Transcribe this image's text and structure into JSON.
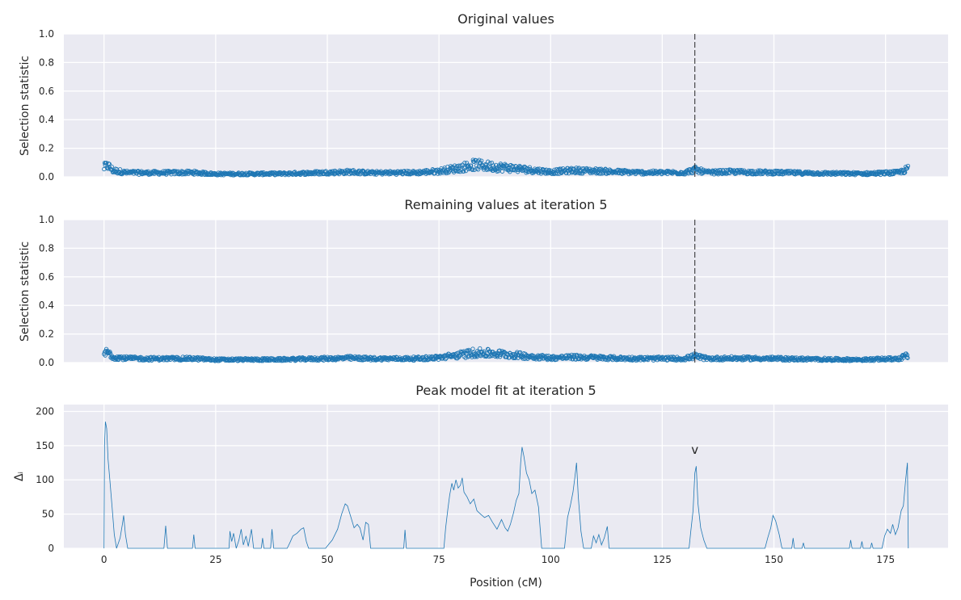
{
  "chart_data": [
    {
      "type": "scatter",
      "title": "Original values",
      "ylabel": "Selection statistic",
      "xlabel": "",
      "xlim": [
        -9,
        189
      ],
      "ylim": [
        0,
        1
      ],
      "yticks": [
        0.0,
        0.2,
        0.4,
        0.6,
        0.8,
        1.0
      ],
      "ytick_labels": [
        "0.0",
        "0.2",
        "0.4",
        "0.6",
        "0.8",
        "1.0"
      ],
      "xticks": [
        0,
        25,
        50,
        75,
        100,
        125,
        150,
        175
      ],
      "show_xtick_labels": false,
      "grid": true,
      "peak_position": 132.3,
      "series": [
        {
          "color": "#1f77b4",
          "marker": "open-circle",
          "x_range": [
            0,
            180
          ],
          "profile": [
            [
              0,
              0.065
            ],
            [
              0.8,
              0.08
            ],
            [
              2,
              0.045
            ],
            [
              5,
              0.03
            ],
            [
              10,
              0.028
            ],
            [
              20,
              0.03
            ],
            [
              25,
              0.02
            ],
            [
              40,
              0.022
            ],
            [
              50,
              0.03
            ],
            [
              55,
              0.035
            ],
            [
              60,
              0.028
            ],
            [
              70,
              0.03
            ],
            [
              75,
              0.04
            ],
            [
              80,
              0.065
            ],
            [
              83,
              0.085
            ],
            [
              86,
              0.075
            ],
            [
              90,
              0.065
            ],
            [
              95,
              0.05
            ],
            [
              100,
              0.035
            ],
            [
              105,
              0.045
            ],
            [
              110,
              0.042
            ],
            [
              115,
              0.035
            ],
            [
              120,
              0.03
            ],
            [
              130,
              0.03
            ],
            [
              132.3,
              0.05
            ],
            [
              135,
              0.03
            ],
            [
              140,
              0.035
            ],
            [
              150,
              0.03
            ],
            [
              160,
              0.025
            ],
            [
              170,
              0.022
            ],
            [
              178,
              0.03
            ],
            [
              180,
              0.055
            ]
          ]
        }
      ]
    },
    {
      "type": "scatter",
      "title": "Remaining values at iteration 5",
      "ylabel": "Selection statistic",
      "xlabel": "",
      "xlim": [
        -9,
        189
      ],
      "ylim": [
        0,
        1
      ],
      "yticks": [
        0.0,
        0.2,
        0.4,
        0.6,
        0.8,
        1.0
      ],
      "ytick_labels": [
        "0.0",
        "0.2",
        "0.4",
        "0.6",
        "0.8",
        "1.0"
      ],
      "xticks": [
        0,
        25,
        50,
        75,
        100,
        125,
        150,
        175
      ],
      "show_xtick_labels": false,
      "grid": true,
      "peak_position": 132.3,
      "series": [
        {
          "color": "#1f77b4",
          "marker": "open-circle",
          "x_range": [
            0,
            180
          ],
          "profile": [
            [
              0,
              0.06
            ],
            [
              0.8,
              0.075
            ],
            [
              2,
              0.04
            ],
            [
              5,
              0.03
            ],
            [
              10,
              0.027
            ],
            [
              20,
              0.028
            ],
            [
              25,
              0.02
            ],
            [
              40,
              0.022
            ],
            [
              50,
              0.028
            ],
            [
              55,
              0.032
            ],
            [
              60,
              0.027
            ],
            [
              70,
              0.028
            ],
            [
              75,
              0.035
            ],
            [
              80,
              0.055
            ],
            [
              83,
              0.07
            ],
            [
              86,
              0.065
            ],
            [
              90,
              0.058
            ],
            [
              95,
              0.045
            ],
            [
              100,
              0.033
            ],
            [
              105,
              0.038
            ],
            [
              110,
              0.035
            ],
            [
              115,
              0.03
            ],
            [
              120,
              0.028
            ],
            [
              130,
              0.028
            ],
            [
              132.3,
              0.045
            ],
            [
              135,
              0.028
            ],
            [
              140,
              0.03
            ],
            [
              150,
              0.028
            ],
            [
              160,
              0.023
            ],
            [
              170,
              0.02
            ],
            [
              178,
              0.028
            ],
            [
              180,
              0.05
            ]
          ]
        }
      ]
    },
    {
      "type": "line",
      "title": "Peak model fit at iteration 5",
      "ylabel": "Δᵢ",
      "xlabel": "Position (cM)",
      "xlim": [
        -9,
        189
      ],
      "ylim": [
        0,
        210
      ],
      "yticks": [
        0,
        50,
        100,
        150,
        200
      ],
      "ytick_labels": [
        "0",
        "50",
        "100",
        "150",
        "200"
      ],
      "xticks": [
        0,
        25,
        50,
        75,
        100,
        125,
        150,
        175
      ],
      "xtick_labels": [
        "0",
        "25",
        "50",
        "75",
        "100",
        "125",
        "150",
        "175"
      ],
      "grid": true,
      "peak_marker": {
        "x": 132.3,
        "y": 138,
        "symbol": "v"
      },
      "series": [
        {
          "color": "#1f77b4",
          "points": [
            [
              0,
              0
            ],
            [
              0.1,
              150
            ],
            [
              0.3,
              185
            ],
            [
              0.6,
              175
            ],
            [
              0.9,
              130
            ],
            [
              1.3,
              100
            ],
            [
              1.8,
              60
            ],
            [
              2.3,
              20
            ],
            [
              2.8,
              0
            ],
            [
              3.6,
              15
            ],
            [
              4.1,
              35
            ],
            [
              4.4,
              48
            ],
            [
              4.8,
              20
            ],
            [
              5.3,
              0
            ],
            [
              13.4,
              0
            ],
            [
              13.8,
              33
            ],
            [
              14.2,
              0
            ],
            [
              19.8,
              0
            ],
            [
              20.1,
              20
            ],
            [
              20.4,
              0
            ],
            [
              28,
              0
            ],
            [
              28.2,
              25
            ],
            [
              28.6,
              10
            ],
            [
              29,
              22
            ],
            [
              29.6,
              0
            ],
            [
              30.2,
              12
            ],
            [
              30.7,
              28
            ],
            [
              31.2,
              5
            ],
            [
              31.8,
              18
            ],
            [
              32.3,
              3
            ],
            [
              33,
              28
            ],
            [
              33.5,
              0
            ],
            [
              35.2,
              0
            ],
            [
              35.5,
              15
            ],
            [
              35.8,
              0
            ],
            [
              37.3,
              0
            ],
            [
              37.6,
              28
            ],
            [
              38,
              0
            ],
            [
              41,
              0
            ],
            [
              41.6,
              8
            ],
            [
              42.3,
              18
            ],
            [
              43.2,
              22
            ],
            [
              44.1,
              28
            ],
            [
              44.7,
              30
            ],
            [
              45.3,
              10
            ],
            [
              45.8,
              0
            ],
            [
              49.6,
              0
            ],
            [
              50.2,
              5
            ],
            [
              51.1,
              12
            ],
            [
              52.3,
              28
            ],
            [
              53.2,
              50
            ],
            [
              54,
              65
            ],
            [
              54.5,
              62
            ],
            [
              55.3,
              45
            ],
            [
              56,
              30
            ],
            [
              56.7,
              35
            ],
            [
              57.3,
              30
            ],
            [
              58,
              12
            ],
            [
              58.6,
              38
            ],
            [
              59.2,
              35
            ],
            [
              59.7,
              0
            ],
            [
              67.1,
              0
            ],
            [
              67.4,
              27
            ],
            [
              67.7,
              0
            ],
            [
              76.1,
              0
            ],
            [
              76.5,
              30
            ],
            [
              77,
              58
            ],
            [
              77.4,
              78
            ],
            [
              77.9,
              95
            ],
            [
              78.3,
              85
            ],
            [
              78.8,
              100
            ],
            [
              79.3,
              88
            ],
            [
              79.8,
              92
            ],
            [
              80.2,
              103
            ],
            [
              80.6,
              82
            ],
            [
              81.3,
              75
            ],
            [
              82,
              65
            ],
            [
              82.8,
              72
            ],
            [
              83.5,
              55
            ],
            [
              84.3,
              50
            ],
            [
              85.2,
              45
            ],
            [
              86.1,
              48
            ],
            [
              87,
              38
            ],
            [
              88,
              28
            ],
            [
              89,
              42
            ],
            [
              89.8,
              30
            ],
            [
              90.4,
              25
            ],
            [
              91,
              35
            ],
            [
              91.7,
              52
            ],
            [
              92.3,
              70
            ],
            [
              92.9,
              80
            ],
            [
              93.3,
              125
            ],
            [
              93.6,
              148
            ],
            [
              94,
              135
            ],
            [
              94.6,
              110
            ],
            [
              95.2,
              100
            ],
            [
              95.8,
              80
            ],
            [
              96.5,
              85
            ],
            [
              97.3,
              60
            ],
            [
              98,
              0
            ],
            [
              103.1,
              0
            ],
            [
              103.8,
              45
            ],
            [
              104.4,
              62
            ],
            [
              105,
              82
            ],
            [
              105.4,
              102
            ],
            [
              105.8,
              125
            ],
            [
              106.2,
              75
            ],
            [
              106.8,
              25
            ],
            [
              107.4,
              0
            ],
            [
              109.1,
              0
            ],
            [
              109.6,
              18
            ],
            [
              110.2,
              8
            ],
            [
              110.8,
              20
            ],
            [
              111.4,
              5
            ],
            [
              112,
              15
            ],
            [
              112.7,
              32
            ],
            [
              113.1,
              0
            ],
            [
              131,
              0
            ],
            [
              131.4,
              25
            ],
            [
              131.9,
              55
            ],
            [
              132.3,
              110
            ],
            [
              132.6,
              120
            ],
            [
              133,
              65
            ],
            [
              133.6,
              30
            ],
            [
              134.3,
              12
            ],
            [
              135,
              0
            ],
            [
              148,
              0
            ],
            [
              148.6,
              15
            ],
            [
              149.3,
              30
            ],
            [
              149.8,
              48
            ],
            [
              150.4,
              40
            ],
            [
              151.2,
              20
            ],
            [
              151.8,
              0
            ],
            [
              154,
              0
            ],
            [
              154.3,
              15
            ],
            [
              154.6,
              0
            ],
            [
              156.3,
              0
            ],
            [
              156.6,
              8
            ],
            [
              156.9,
              0
            ],
            [
              166.9,
              0
            ],
            [
              167.2,
              12
            ],
            [
              167.5,
              0
            ],
            [
              169.4,
              0
            ],
            [
              169.7,
              10
            ],
            [
              170,
              0
            ],
            [
              171.6,
              0
            ],
            [
              171.9,
              8
            ],
            [
              172.2,
              0
            ],
            [
              174.2,
              0
            ],
            [
              174.8,
              18
            ],
            [
              175.4,
              28
            ],
            [
              176.1,
              22
            ],
            [
              176.6,
              35
            ],
            [
              177.2,
              20
            ],
            [
              177.8,
              30
            ],
            [
              178.5,
              55
            ],
            [
              179,
              62
            ],
            [
              179.5,
              100
            ],
            [
              179.9,
              125
            ],
            [
              180.1,
              0
            ]
          ]
        }
      ]
    }
  ]
}
